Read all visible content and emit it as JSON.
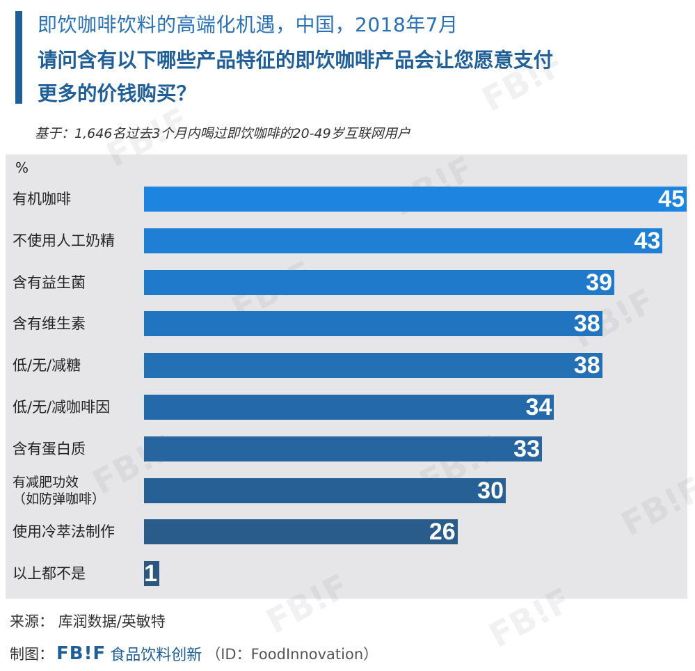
{
  "header": {
    "title_line1": "即饮咖啡饮料的高端化机遇，中国，2018年7月",
    "title_line2": "请问含有以下哪些产品特征的即饮咖啡产品会让您愿意支付",
    "title_line3": "更多的价钱购买？",
    "subtitle": "基于：1,646名过去3个月内喝过即饮咖啡的20-49岁互联网用户"
  },
  "chart_data": {
    "type": "bar",
    "orientation": "horizontal",
    "unit_label": "%",
    "categories": [
      "有机咖啡",
      "不使用人工奶精",
      "含有益生菌",
      "含有维生素",
      "低/无/减糖",
      "低/无/减咖啡因",
      "含有蛋白质",
      "有减肥功效\n（如防弹咖啡）",
      "使用冷萃法制作",
      "以上都不是"
    ],
    "values": [
      45,
      43,
      39,
      38,
      38,
      34,
      33,
      30,
      26,
      1
    ],
    "value_labels": [
      "45",
      "43",
      "39",
      "38",
      "38",
      "34",
      "33",
      "30",
      "26",
      "1"
    ],
    "xlim": [
      0,
      45
    ],
    "colors": {
      "gradient_start": "#1d84e0",
      "gradient_end": "#2a5680",
      "plot_background": "#e6e6e9",
      "value_text": "#ffffff"
    }
  },
  "footer": {
    "source": "来源：  库润数据/英敏特",
    "credit_prefix": "制图：",
    "credit_logo": "FB!F",
    "credit_brand": "食品饮料创新",
    "credit_id": "（ID：FoodInnovation）"
  },
  "watermark_text": "FB!F"
}
